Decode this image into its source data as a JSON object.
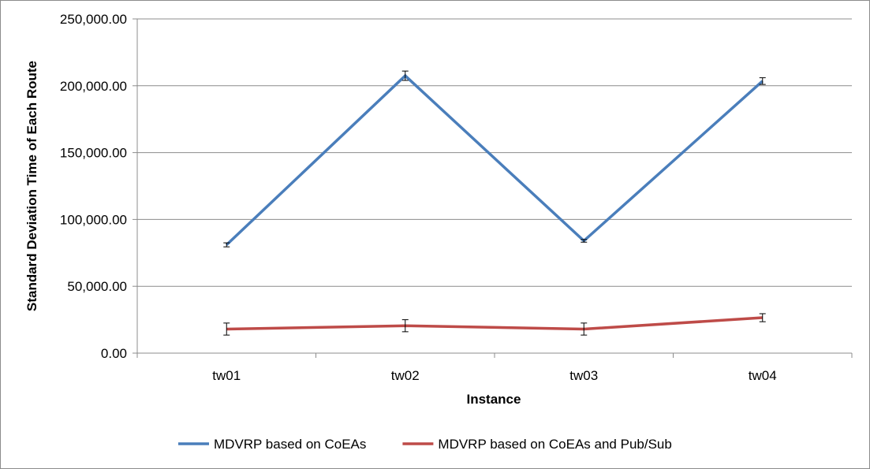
{
  "chart_data": {
    "type": "line",
    "categories": [
      "tw01",
      "tw02",
      "tw03",
      "tw04"
    ],
    "xlabel": "Instance",
    "ylabel": "Standard Deviation Time of Each Route",
    "ylim": [
      0,
      250000
    ],
    "yticks": [
      0,
      50000,
      100000,
      150000,
      200000,
      250000
    ],
    "ytick_labels": [
      "0.00",
      "50,000.00",
      "100,000.00",
      "150,000.00",
      "200,000.00",
      "250,000.00"
    ],
    "grid": true,
    "legend_position": "bottom",
    "series": [
      {
        "name": "MDVRP based on CoEAs",
        "color": "#4a7ebb",
        "values": [
          81000,
          207500,
          84000,
          203500
        ],
        "errors": [
          1500,
          3500,
          1000,
          2500
        ]
      },
      {
        "name": "MDVRP based on CoEAs and Pub/Sub",
        "color": "#be4b48",
        "values": [
          18000,
          20500,
          18000,
          26500
        ],
        "errors": [
          4500,
          4500,
          4500,
          3000
        ]
      }
    ]
  }
}
